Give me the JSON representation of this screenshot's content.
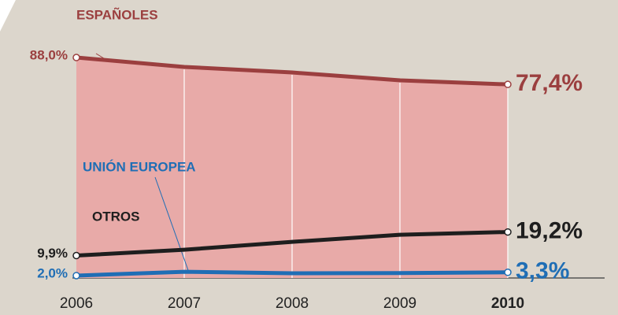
{
  "chart_data": {
    "type": "line",
    "categories": [
      "2006",
      "2007",
      "2008",
      "2009",
      "2010"
    ],
    "ylim": [
      0,
      100
    ],
    "series": [
      {
        "name": "ESPAÑOLES",
        "color": "#9b3f3f",
        "values": [
          88.0,
          84.3,
          82.1,
          79.0,
          77.4
        ],
        "value_labels": [
          "88,0%",
          null,
          null,
          null,
          "77,4%"
        ]
      },
      {
        "name": "OTROS",
        "color": "#1e1e1e",
        "values": [
          9.9,
          12.2,
          15.3,
          18.1,
          19.2
        ],
        "value_labels": [
          "9,9%",
          null,
          null,
          null,
          "19,2%"
        ]
      },
      {
        "name": "UNIÓN EUROPEA",
        "color": "#1f6eb5",
        "values": [
          2.0,
          3.5,
          2.9,
          3.0,
          3.3
        ],
        "value_labels": [
          "2,0%",
          null,
          null,
          null,
          "3,3%"
        ]
      }
    ]
  }
}
